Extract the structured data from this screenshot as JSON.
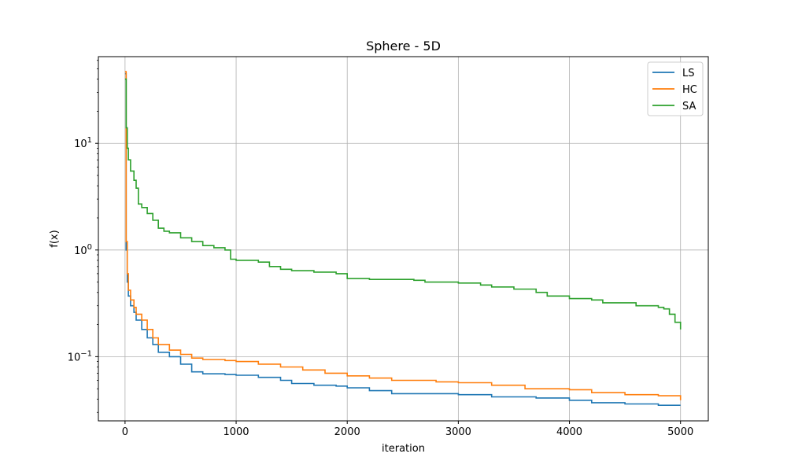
{
  "chart_data": {
    "type": "line",
    "title": "Sphere - 5D",
    "xlabel": "iteration",
    "ylabel": "f(x)",
    "yscale": "log",
    "xlim": [
      -240,
      5250
    ],
    "ylim": [
      0.025,
      65
    ],
    "xticks": [
      0,
      1000,
      2000,
      3000,
      4000,
      5000
    ],
    "xtick_labels": [
      "0",
      "1000",
      "2000",
      "3000",
      "4000",
      "5000"
    ],
    "yticks": [
      {
        "value": 0.1,
        "base": "10",
        "exp": "−1"
      },
      {
        "value": 1,
        "base": "10",
        "exp": "0"
      },
      {
        "value": 10,
        "base": "10",
        "exp": "1"
      }
    ],
    "grid": true,
    "legend": {
      "position": "top-right",
      "entries": [
        "LS",
        "HC",
        "SA"
      ]
    },
    "series": [
      {
        "name": "LS",
        "color": "#1f77b4",
        "points": [
          [
            0,
            45
          ],
          [
            10,
            1.0
          ],
          [
            20,
            0.5
          ],
          [
            30,
            0.37
          ],
          [
            50,
            0.3
          ],
          [
            80,
            0.26
          ],
          [
            100,
            0.22
          ],
          [
            150,
            0.18
          ],
          [
            200,
            0.15
          ],
          [
            250,
            0.13
          ],
          [
            300,
            0.11
          ],
          [
            400,
            0.1
          ],
          [
            500,
            0.085
          ],
          [
            600,
            0.072
          ],
          [
            700,
            0.069
          ],
          [
            900,
            0.068
          ],
          [
            1000,
            0.067
          ],
          [
            1200,
            0.064
          ],
          [
            1400,
            0.06
          ],
          [
            1500,
            0.056
          ],
          [
            1700,
            0.054
          ],
          [
            1900,
            0.053
          ],
          [
            2000,
            0.051
          ],
          [
            2200,
            0.048
          ],
          [
            2400,
            0.045
          ],
          [
            3000,
            0.044
          ],
          [
            3300,
            0.042
          ],
          [
            3700,
            0.041
          ],
          [
            4000,
            0.039
          ],
          [
            4200,
            0.037
          ],
          [
            4500,
            0.036
          ],
          [
            4800,
            0.035
          ],
          [
            5000,
            0.035
          ]
        ]
      },
      {
        "name": "HC",
        "color": "#ff7f0e",
        "points": [
          [
            0,
            47
          ],
          [
            10,
            1.2
          ],
          [
            20,
            0.6
          ],
          [
            30,
            0.42
          ],
          [
            50,
            0.34
          ],
          [
            80,
            0.29
          ],
          [
            100,
            0.25
          ],
          [
            150,
            0.22
          ],
          [
            200,
            0.18
          ],
          [
            250,
            0.15
          ],
          [
            300,
            0.13
          ],
          [
            400,
            0.115
          ],
          [
            500,
            0.105
          ],
          [
            600,
            0.097
          ],
          [
            700,
            0.094
          ],
          [
            900,
            0.092
          ],
          [
            1000,
            0.09
          ],
          [
            1200,
            0.085
          ],
          [
            1400,
            0.08
          ],
          [
            1600,
            0.075
          ],
          [
            1800,
            0.07
          ],
          [
            2000,
            0.066
          ],
          [
            2200,
            0.063
          ],
          [
            2400,
            0.06
          ],
          [
            2800,
            0.058
          ],
          [
            3000,
            0.057
          ],
          [
            3300,
            0.054
          ],
          [
            3600,
            0.05
          ],
          [
            4000,
            0.049
          ],
          [
            4200,
            0.046
          ],
          [
            4500,
            0.044
          ],
          [
            4800,
            0.043
          ],
          [
            5000,
            0.039
          ]
        ]
      },
      {
        "name": "SA",
        "color": "#2ca02c",
        "points": [
          [
            0,
            40
          ],
          [
            10,
            14
          ],
          [
            20,
            9
          ],
          [
            30,
            7
          ],
          [
            50,
            5.5
          ],
          [
            80,
            4.5
          ],
          [
            100,
            3.8
          ],
          [
            120,
            2.7
          ],
          [
            150,
            2.5
          ],
          [
            200,
            2.2
          ],
          [
            250,
            1.9
          ],
          [
            300,
            1.6
          ],
          [
            350,
            1.5
          ],
          [
            400,
            1.45
          ],
          [
            500,
            1.3
          ],
          [
            600,
            1.2
          ],
          [
            700,
            1.1
          ],
          [
            800,
            1.05
          ],
          [
            900,
            1.0
          ],
          [
            950,
            0.82
          ],
          [
            1000,
            0.8
          ],
          [
            1200,
            0.77
          ],
          [
            1300,
            0.7
          ],
          [
            1400,
            0.66
          ],
          [
            1500,
            0.64
          ],
          [
            1700,
            0.62
          ],
          [
            1900,
            0.6
          ],
          [
            2000,
            0.54
          ],
          [
            2200,
            0.53
          ],
          [
            2600,
            0.52
          ],
          [
            2700,
            0.5
          ],
          [
            3000,
            0.49
          ],
          [
            3200,
            0.47
          ],
          [
            3300,
            0.45
          ],
          [
            3500,
            0.43
          ],
          [
            3700,
            0.4
          ],
          [
            3800,
            0.37
          ],
          [
            4000,
            0.35
          ],
          [
            4200,
            0.34
          ],
          [
            4300,
            0.32
          ],
          [
            4500,
            0.32
          ],
          [
            4600,
            0.3
          ],
          [
            4800,
            0.29
          ],
          [
            4850,
            0.28
          ],
          [
            4900,
            0.25
          ],
          [
            4950,
            0.21
          ],
          [
            5000,
            0.18
          ]
        ]
      }
    ]
  }
}
